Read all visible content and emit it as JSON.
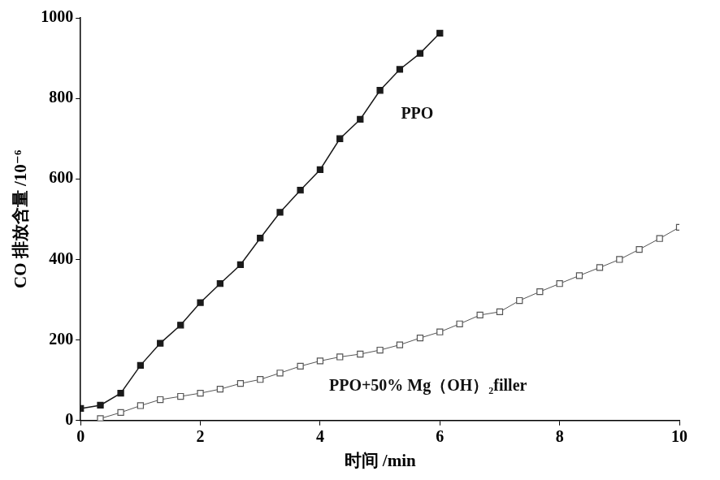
{
  "chart_data": {
    "type": "line",
    "x_label": "时间 /min",
    "y_label": "CO 排放含量 /10⁻⁶",
    "xlim": [
      0,
      10
    ],
    "xticks": [
      0,
      2,
      4,
      6,
      8,
      10
    ],
    "ylim": [
      0,
      1000
    ],
    "yticks": [
      0,
      200,
      400,
      600,
      800,
      1000
    ],
    "grid": false,
    "series": [
      {
        "name": "PPO",
        "color": "#1a1a1a",
        "marker": "filled_square",
        "line_style": "solid",
        "x": [
          0,
          0.33,
          0.67,
          1,
          1.33,
          1.67,
          2,
          2.33,
          2.67,
          3,
          3.33,
          3.67,
          4,
          4.33,
          4.67,
          5,
          5.33,
          5.67,
          6
        ],
        "values": [
          30,
          38,
          68,
          137,
          192,
          237,
          293,
          340,
          387,
          453,
          517,
          572,
          623,
          700,
          748,
          820,
          872,
          912,
          962
        ]
      },
      {
        "name": "PPO+50% Mg（OH）₂filler",
        "color": "#555555",
        "marker": "open_square",
        "line_style": "solid",
        "x": [
          0.33,
          0.67,
          1,
          1.33,
          1.67,
          2,
          2.33,
          2.67,
          3,
          3.33,
          3.67,
          4,
          4.33,
          4.67,
          5,
          5.33,
          5.67,
          6,
          6.33,
          6.67,
          7,
          7.33,
          7.67,
          8,
          8.33,
          8.67,
          9,
          9.33,
          9.67,
          10
        ],
        "values": [
          5,
          20,
          37,
          52,
          60,
          68,
          78,
          92,
          102,
          118,
          135,
          148,
          158,
          165,
          175,
          188,
          205,
          220,
          240,
          262,
          270,
          298,
          320,
          340,
          360,
          380,
          400,
          425,
          452,
          480
        ]
      }
    ]
  }
}
